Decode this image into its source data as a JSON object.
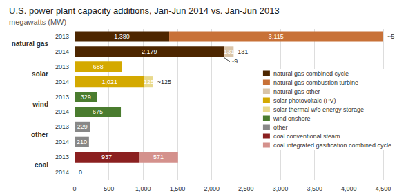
{
  "chart_data": {
    "type": "bar",
    "orientation": "horizontal",
    "stacked": true,
    "title": "U.S. power plant capacity additions, Jan-Jun 2014 vs. Jan-Jun 2013",
    "subtitle": "megawatts (MW)",
    "groups": [
      "natural gas",
      "solar",
      "wind",
      "other",
      "coal"
    ],
    "categories": [
      "2013",
      "2014",
      "2013",
      "2014",
      "2013",
      "2014",
      "2013",
      "2014",
      "2013",
      "2014"
    ],
    "series": [
      {
        "name": "natural gas combined cycle",
        "color": "#4d2600",
        "values": [
          1380,
          2179,
          null,
          null,
          null,
          null,
          null,
          null,
          null,
          null
        ],
        "value_labels": [
          "1,380",
          "2,179",
          null,
          null,
          null,
          null,
          null,
          null,
          null,
          null
        ]
      },
      {
        "name": "natural gas combustion turbine",
        "color": "#c87137",
        "values": [
          3115,
          9,
          null,
          null,
          null,
          null,
          null,
          null,
          null,
          null
        ],
        "value_labels": [
          "3,115",
          null,
          null,
          null,
          null,
          null,
          null,
          null,
          null,
          null
        ]
      },
      {
        "name": "natural gas other",
        "color": "#d9c4a8",
        "values": [
          5,
          131,
          null,
          null,
          null,
          null,
          null,
          null,
          null,
          null
        ],
        "value_labels": [
          null,
          "131",
          null,
          null,
          null,
          null,
          null,
          null,
          null,
          null
        ]
      },
      {
        "name": "solar photovoltaic (PV)",
        "color": "#d4a900",
        "values": [
          null,
          null,
          688,
          1021,
          null,
          null,
          null,
          null,
          null,
          null
        ],
        "value_labels": [
          null,
          null,
          "688",
          "1,021",
          null,
          null,
          null,
          null,
          null,
          null
        ]
      },
      {
        "name": "solar thermal w/o energy storage",
        "color": "#e8d98c",
        "values": [
          null,
          null,
          0,
          125,
          null,
          null,
          null,
          null,
          null,
          null
        ],
        "value_labels": [
          null,
          null,
          null,
          "125",
          null,
          null,
          null,
          null,
          null,
          null
        ]
      },
      {
        "name": "wind onshore",
        "color": "#4a7c2f",
        "values": [
          null,
          null,
          null,
          null,
          329,
          675,
          null,
          null,
          null,
          null
        ],
        "value_labels": [
          null,
          null,
          null,
          null,
          "329",
          "675",
          null,
          null,
          null,
          null
        ]
      },
      {
        "name": "other",
        "color": "#888888",
        "values": [
          null,
          null,
          null,
          null,
          null,
          null,
          229,
          210,
          null,
          null
        ],
        "value_labels": [
          null,
          null,
          null,
          null,
          null,
          null,
          "229",
          "210",
          null,
          null
        ]
      },
      {
        "name": "coal conventional steam",
        "color": "#8b2020",
        "values": [
          null,
          null,
          null,
          null,
          null,
          null,
          null,
          null,
          937,
          0
        ],
        "value_labels": [
          null,
          null,
          null,
          null,
          null,
          null,
          null,
          null,
          "937",
          null
        ]
      },
      {
        "name": "coal integrated gasification combined cycle",
        "color": "#d4918c",
        "values": [
          null,
          null,
          null,
          null,
          null,
          null,
          null,
          null,
          571,
          null
        ],
        "value_labels": [
          null,
          null,
          null,
          null,
          null,
          null,
          null,
          null,
          "571",
          null
        ]
      }
    ],
    "xlim": [
      0,
      4500
    ],
    "xticks": [
      0,
      500,
      {
        "value": 1000,
        "label": "1,000"
      },
      {
        "value": 1500,
        "label": "1,500"
      },
      {
        "value": 2000,
        "label": "2,000"
      },
      {
        "value": 2500,
        "label": "2,500"
      },
      {
        "value": 3000,
        "label": "3,000"
      },
      {
        "value": 3500,
        "label": "3,500"
      },
      {
        "value": 4000,
        "label": "4,000"
      },
      {
        "value": 4500,
        "label": "4,500"
      }
    ],
    "grid": true,
    "legend": "right",
    "data_labels": true,
    "annotations": [
      {
        "text": "~5",
        "group": "natural gas",
        "year": "2013",
        "series": "natural gas other"
      },
      {
        "text": "~9",
        "group": "natural gas",
        "year": "2014",
        "series": "natural gas combustion turbine"
      },
      {
        "text": "131",
        "group": "natural gas",
        "year": "2014",
        "series": "natural gas other"
      },
      {
        "text": "~125",
        "group": "solar",
        "year": "2014",
        "series": "solar thermal w/o energy storage"
      },
      {
        "text": "0",
        "group": "coal",
        "year": "2014",
        "series": "coal conventional steam"
      }
    ]
  }
}
